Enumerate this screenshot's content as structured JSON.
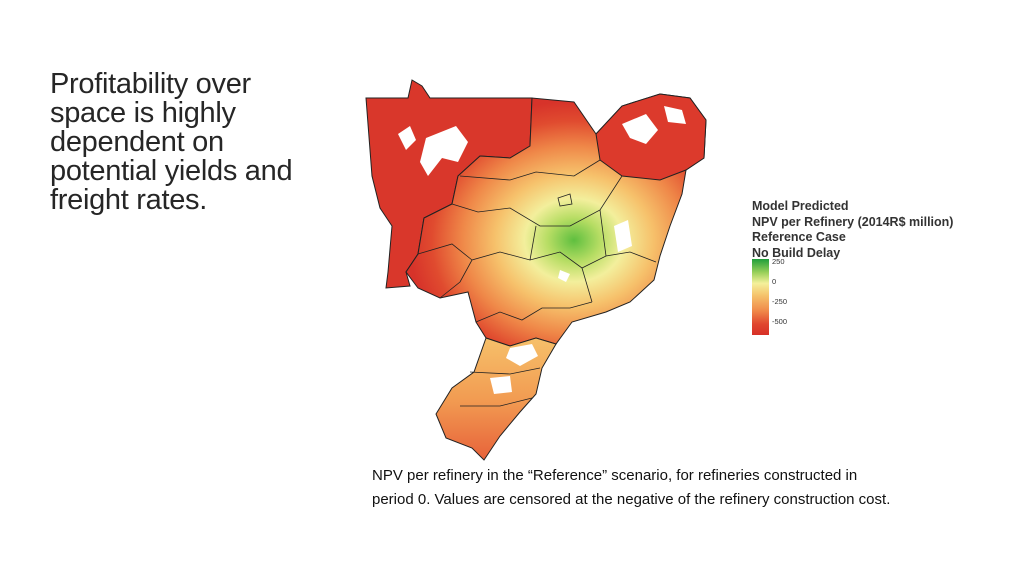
{
  "slide": {
    "title_lines": [
      "Profitability over",
      "space is highly",
      "dependent on",
      "potential yields and",
      "freight rates."
    ],
    "caption_lines": [
      "NPV per refinery in the “Reference” scenario, for refineries constructed in",
      "period 0. Values are censored at the negative of the refinery construction cost."
    ]
  },
  "legend": {
    "title_lines": [
      "Model Predicted",
      "NPV per Refinery (2014R$ million)",
      "Reference Case",
      "No Build Delay"
    ],
    "ticks": [
      "250",
      "0",
      "-250",
      "-500"
    ],
    "colors": {
      "high": "#1f9e3a",
      "zero": "#f4f09a",
      "low": "#d73027"
    }
  }
}
